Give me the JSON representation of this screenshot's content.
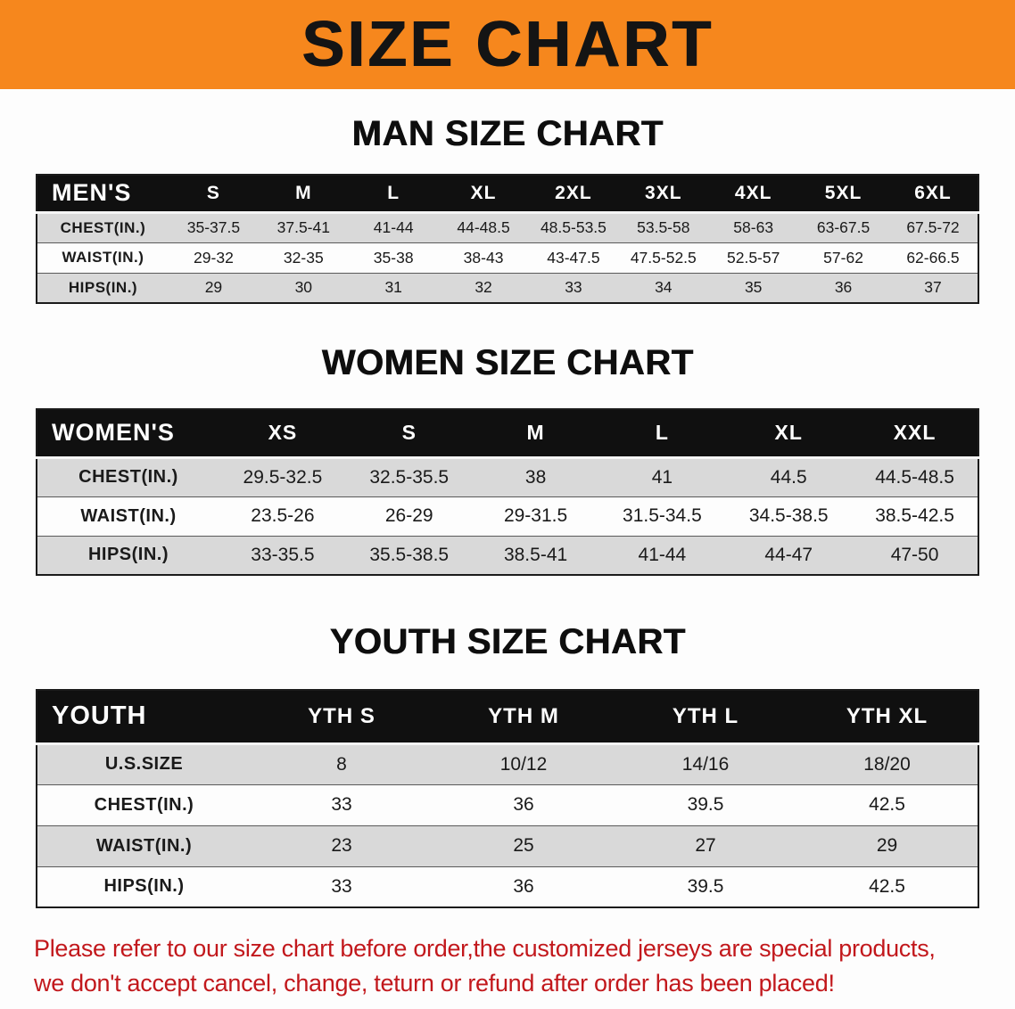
{
  "banner": {
    "title": "SIZE CHART",
    "background_color": "#f6871d",
    "text_color": "#141414"
  },
  "men": {
    "heading": "MAN SIZE CHART",
    "label": "MEN'S",
    "columns": [
      "S",
      "M",
      "L",
      "XL",
      "2XL",
      "3XL",
      "4XL",
      "5XL",
      "6XL"
    ],
    "rows": [
      {
        "label": "CHEST(IN.)",
        "values": [
          "35-37.5",
          "37.5-41",
          "41-44",
          "44-48.5",
          "48.5-53.5",
          "53.5-58",
          "58-63",
          "63-67.5",
          "67.5-72"
        ]
      },
      {
        "label": "WAIST(IN.)",
        "values": [
          "29-32",
          "32-35",
          "35-38",
          "38-43",
          "43-47.5",
          "47.5-52.5",
          "52.5-57",
          "57-62",
          "62-66.5"
        ]
      },
      {
        "label": "HIPS(IN.)",
        "values": [
          "29",
          "30",
          "31",
          "32",
          "33",
          "34",
          "35",
          "36",
          "37"
        ]
      }
    ]
  },
  "women": {
    "heading": "WOMEN SIZE CHART",
    "label": "WOMEN'S",
    "columns": [
      "XS",
      "S",
      "M",
      "L",
      "XL",
      "XXL"
    ],
    "rows": [
      {
        "label": "CHEST(IN.)",
        "values": [
          "29.5-32.5",
          "32.5-35.5",
          "38",
          "41",
          "44.5",
          "44.5-48.5"
        ]
      },
      {
        "label": "WAIST(IN.)",
        "values": [
          "23.5-26",
          "26-29",
          "29-31.5",
          "31.5-34.5",
          "34.5-38.5",
          "38.5-42.5"
        ]
      },
      {
        "label": "HIPS(IN.)",
        "values": [
          "33-35.5",
          "35.5-38.5",
          "38.5-41",
          "41-44",
          "44-47",
          "47-50"
        ]
      }
    ]
  },
  "youth": {
    "heading": "YOUTH SIZE CHART",
    "label": "YOUTH",
    "columns": [
      "YTH S",
      "YTH M",
      "YTH L",
      "YTH XL"
    ],
    "rows": [
      {
        "label": "U.S.SIZE",
        "values": [
          "8",
          "10/12",
          "14/16",
          "18/20"
        ]
      },
      {
        "label": "CHEST(IN.)",
        "values": [
          "33",
          "36",
          "39.5",
          "42.5"
        ]
      },
      {
        "label": "WAIST(IN.)",
        "values": [
          "23",
          "25",
          "27",
          "29"
        ]
      },
      {
        "label": "HIPS(IN.)",
        "values": [
          "33",
          "36",
          "39.5",
          "42.5"
        ]
      }
    ]
  },
  "notice": {
    "line1": "Please refer to our size chart before order,the customized jerseys are special products,",
    "line2": "we don't accept cancel, change, teturn or refund after order has been placed!",
    "text_color": "#c2181c"
  }
}
